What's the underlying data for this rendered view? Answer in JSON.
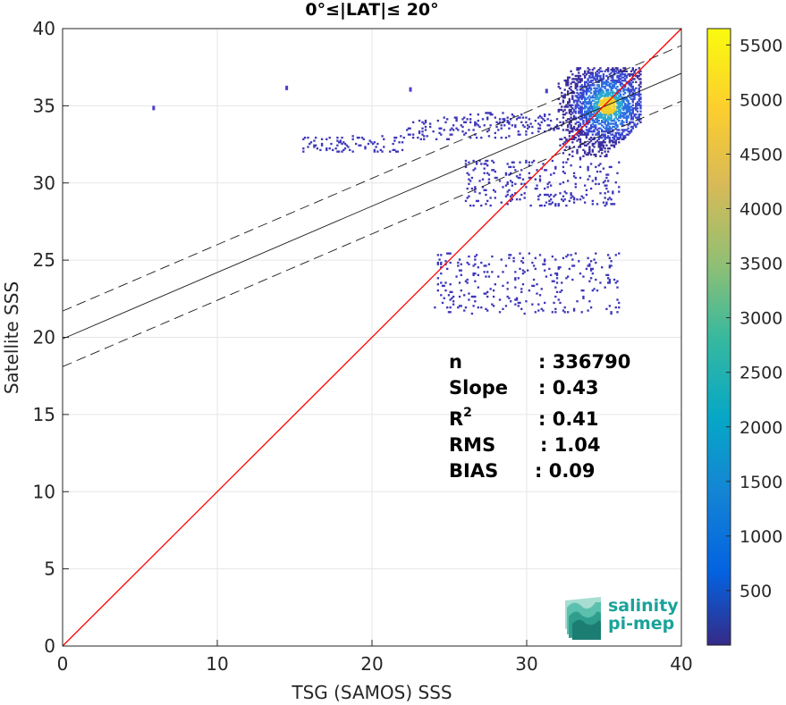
{
  "chart_data": {
    "type": "heatmap",
    "title": "0°≤|LAT|≤ 20°",
    "xlabel": "TSG (SAMOS) SSS",
    "ylabel": "Satellite SSS",
    "xlim": [
      0,
      40
    ],
    "ylim": [
      0,
      40
    ],
    "x_ticks": [
      "0",
      "10",
      "20",
      "30",
      "40"
    ],
    "y_ticks": [
      "0",
      "5",
      "10",
      "15",
      "20",
      "25",
      "30",
      "35",
      "40"
    ],
    "grid": true,
    "colorbar": {
      "range": [
        0,
        5650
      ],
      "ticks": [
        "500",
        "1000",
        "1500",
        "2000",
        "2500",
        "3000",
        "3500",
        "4000",
        "4500",
        "5000",
        "5500"
      ]
    },
    "identity_line": {
      "color": "#ff0000",
      "from": [
        0,
        0
      ],
      "to": [
        40,
        40
      ]
    },
    "fit_line": {
      "slope": 0.43,
      "intercept": 19.9,
      "x_range": [
        0,
        40
      ]
    },
    "fit_bounds": {
      "offset": 1.8
    },
    "stats": [
      {
        "label": "n",
        "value": ": 336790"
      },
      {
        "label": "Slope",
        "value": ": 0.43"
      },
      {
        "label": "R",
        "sup": "2",
        "value": ": 0.41"
      },
      {
        "label": "RMS",
        "value": ": 1.04"
      },
      {
        "label": "BIAS",
        "value": ": 0.09"
      }
    ],
    "density_clusters": [
      {
        "name": "core",
        "x": [
          32.0,
          37.4
        ],
        "y": [
          31.5,
          37.5
        ],
        "density": 0.35
      },
      {
        "name": "upper-band",
        "x": [
          22.0,
          32.0
        ],
        "y": [
          32.8,
          34.6
        ],
        "density": 0.12
      },
      {
        "name": "left-tail",
        "x": [
          15.5,
          22.0
        ],
        "y": [
          32.0,
          33.2
        ],
        "density": 0.1
      },
      {
        "name": "mid-scatter",
        "x": [
          26.0,
          36.0
        ],
        "y": [
          28.5,
          31.5
        ],
        "density": 0.08
      },
      {
        "name": "low-band",
        "x": [
          24.0,
          36.0
        ],
        "y": [
          21.5,
          25.5
        ],
        "density": 0.05
      }
    ]
  },
  "logo": {
    "line1": "salinity",
    "line2": "pi-mep"
  }
}
